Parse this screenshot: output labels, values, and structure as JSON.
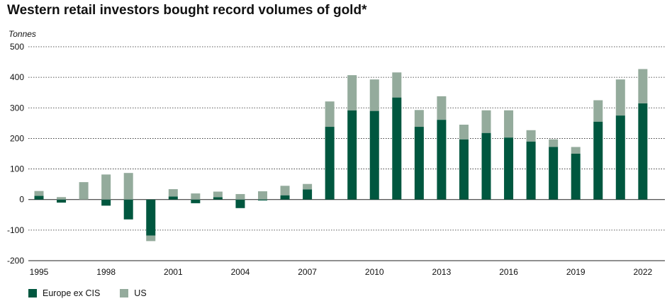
{
  "title": "Western retail investors bought record volumes of gold*",
  "chart_data": {
    "type": "bar",
    "stacked": true,
    "title": "Western retail investors bought record volumes of gold*",
    "ylabel": "Tonnes",
    "xlabel": "",
    "ylim": [
      -200,
      500
    ],
    "yticks": [
      500,
      400,
      300,
      200,
      100,
      0,
      -100,
      -200
    ],
    "grid": true,
    "legend_position": "bottom-left",
    "x_tick_labels": [
      "1995",
      "1998",
      "2001",
      "2004",
      "2007",
      "2010",
      "2013",
      "2016",
      "2019",
      "2022"
    ],
    "categories": [
      1995,
      1996,
      1997,
      1998,
      1999,
      2000,
      2001,
      2002,
      2003,
      2004,
      2005,
      2006,
      2007,
      2008,
      2009,
      2010,
      2011,
      2012,
      2013,
      2014,
      2015,
      2016,
      2017,
      2018,
      2019,
      2020,
      2021,
      2022
    ],
    "series": [
      {
        "name": "Europe ex CIS",
        "color": "#00573f",
        "values": [
          12,
          -10,
          0,
          -20,
          -65,
          -118,
          10,
          -12,
          8,
          -28,
          -3,
          14,
          33,
          238,
          292,
          290,
          334,
          238,
          261,
          197,
          218,
          203,
          190,
          172,
          150,
          255,
          275,
          315
        ]
      },
      {
        "name": "US",
        "color": "#94ab9c",
        "values": [
          16,
          8,
          57,
          82,
          87,
          0,
          24,
          20,
          18,
          18,
          27,
          31,
          18,
          83,
          115,
          103,
          82,
          55,
          77,
          48,
          74,
          89,
          37,
          25,
          22,
          70,
          118,
          112
        ]
      }
    ],
    "extra_negative": [
      {
        "category": 2000,
        "series": "US",
        "value": -18
      }
    ]
  }
}
